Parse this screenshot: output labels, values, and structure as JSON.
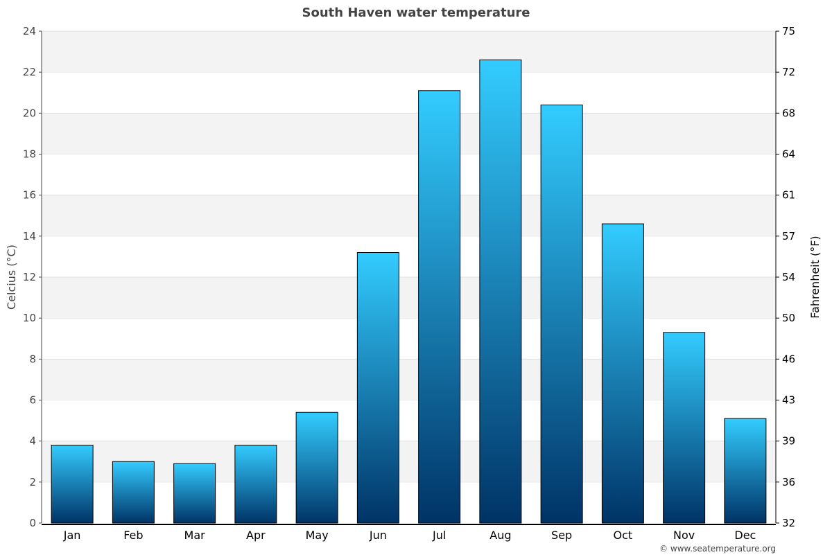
{
  "chart_data": {
    "type": "bar",
    "title": "South Haven water temperature",
    "categories": [
      "Jan",
      "Feb",
      "Mar",
      "Apr",
      "May",
      "Jun",
      "Jul",
      "Aug",
      "Sep",
      "Oct",
      "Nov",
      "Dec"
    ],
    "values": [
      3.8,
      3.0,
      2.9,
      3.8,
      5.4,
      13.2,
      21.1,
      22.6,
      20.4,
      14.6,
      9.3,
      5.1
    ],
    "ylabel": "Celcius (°C)",
    "y2label": "Fahrenheit (°F)",
    "ylim": [
      0,
      24
    ],
    "yticks": [
      0,
      2,
      4,
      6,
      8,
      10,
      12,
      14,
      16,
      18,
      20,
      22,
      24
    ],
    "y2ticks": [
      "32",
      "36",
      "39",
      "43",
      "46",
      "50",
      "54",
      "57",
      "61",
      "64",
      "68",
      "72",
      "75"
    ],
    "grid": "alternating horizontal bands",
    "colors": {
      "bar_top": "#33ccff",
      "bar_bottom": "#003366",
      "band": "#f3f3f3"
    },
    "credit": "© www.seatemperature.org"
  }
}
